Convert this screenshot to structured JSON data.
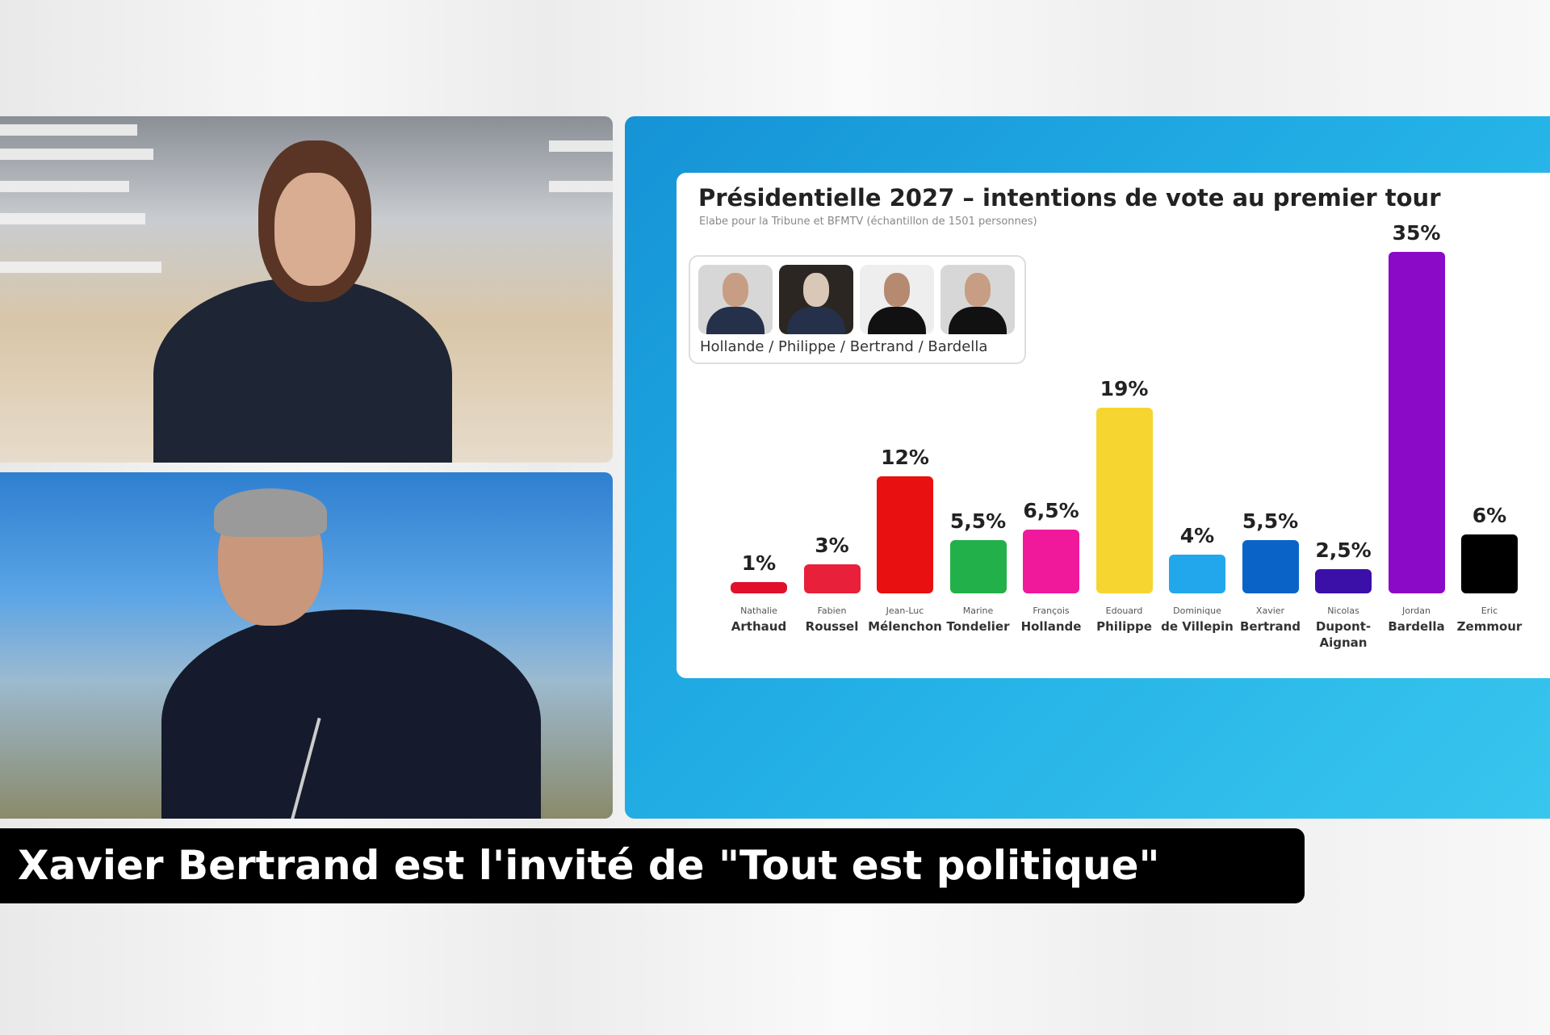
{
  "caption": "Xavier Bertrand est l'invité de \"Tout est politique\"",
  "chart_data": {
    "type": "bar",
    "title": "Présidentielle 2027 – intentions de vote au premier tour",
    "subtitle": "Elabe pour la Tribune et BFMTV (échantillon de 1501 personnes)",
    "hypothesis_label": "Hollande / Philippe / Bertrand / Bardella",
    "xlabel": "",
    "ylabel": "",
    "ylim": [
      0,
      35
    ],
    "categories": [
      {
        "first": "Nathalie",
        "last": "Arthaud"
      },
      {
        "first": "Fabien",
        "last": "Roussel"
      },
      {
        "first": "Jean-Luc",
        "last": "Mélenchon"
      },
      {
        "first": "Marine",
        "last": "Tondelier"
      },
      {
        "first": "François",
        "last": "Hollande"
      },
      {
        "first": "Edouard",
        "last": "Philippe"
      },
      {
        "first": "Dominique",
        "last": "de Villepin"
      },
      {
        "first": "Xavier",
        "last": "Bertrand"
      },
      {
        "first": "Nicolas",
        "last": "Dupont-Aignan"
      },
      {
        "first": "Jordan",
        "last": "Bardella"
      },
      {
        "first": "Eric",
        "last": "Zemmour"
      }
    ],
    "values": [
      1,
      3,
      12,
      5.5,
      6.5,
      19,
      4,
      5.5,
      2.5,
      35,
      6
    ],
    "labels": [
      "1%",
      "3%",
      "12%",
      "5,5%",
      "6,5%",
      "19%",
      "4%",
      "5,5%",
      "2,5%",
      "35%",
      "6%"
    ],
    "colors": [
      "#e0102a",
      "#e8203a",
      "#e81010",
      "#22b04a",
      "#f0199b",
      "#f7d531",
      "#22a7ec",
      "#0a64c8",
      "#3a10a8",
      "#8a0ac8",
      "#000000"
    ]
  }
}
